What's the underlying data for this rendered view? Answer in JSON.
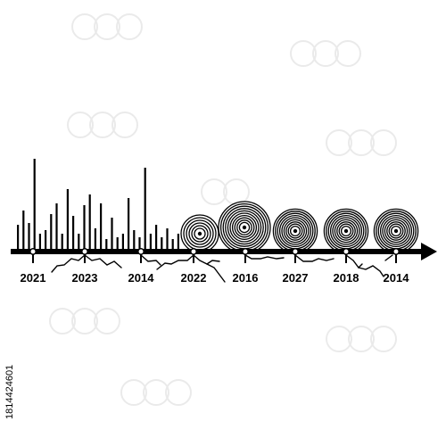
{
  "timeline": {
    "years": [
      "2021",
      "2023",
      "2014",
      "2022",
      "2016",
      "2027",
      "2018",
      "2014"
    ],
    "ink_color": "#000000",
    "background_color": "#ffffff"
  },
  "watermark": {
    "id_text": "1814424601"
  }
}
